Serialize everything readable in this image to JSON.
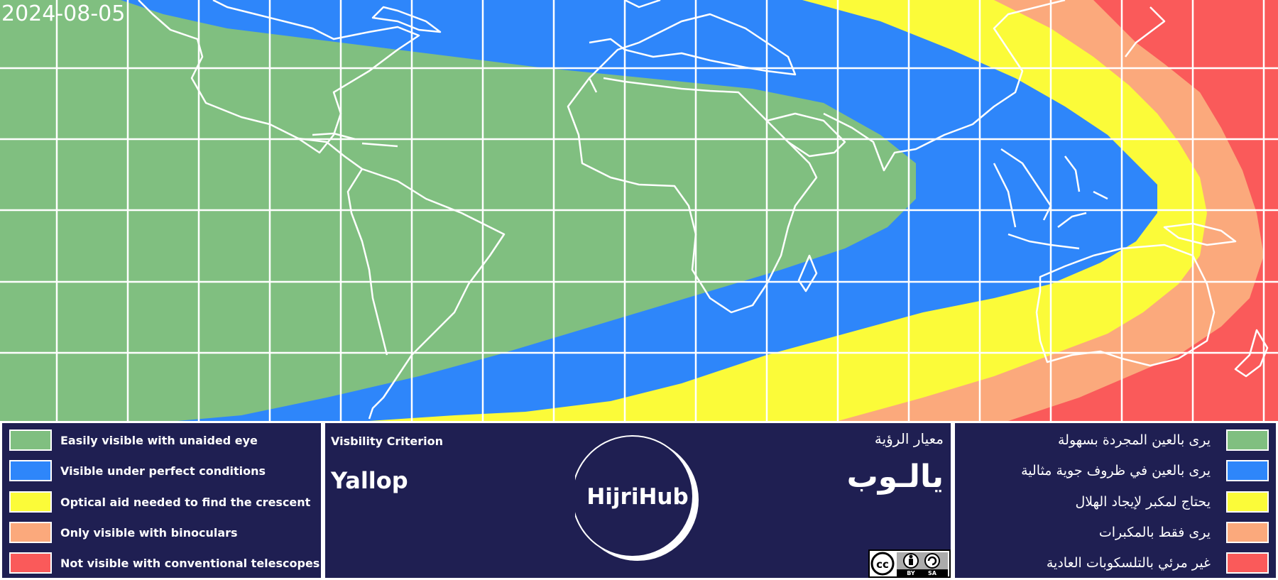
{
  "map": {
    "date": "2024-08-05",
    "colors": {
      "easily": "#80bf80",
      "perfect": "#2e86fa",
      "optical": "#fbfb39",
      "binoculars": "#fba97c",
      "not_visible": "#fa5a5a",
      "background": "#1f1f52",
      "lines": "#ffffff"
    }
  },
  "legend_en": [
    {
      "label": "Easily visible with unaided eye",
      "color": "#80bf80"
    },
    {
      "label": "Visible under perfect conditions",
      "color": "#2e86fa"
    },
    {
      "label": "Optical aid needed to find the crescent",
      "color": "#fbfb39"
    },
    {
      "label": "Only visible with binoculars",
      "color": "#fba97c"
    },
    {
      "label": "Not visible with conventional telescopes",
      "color": "#fa5a5a"
    }
  ],
  "criterion": {
    "label": "Visbility Criterion",
    "method": "Yallop",
    "label_ar": "معيار الرؤية",
    "method_ar": "يالـوب"
  },
  "logo": {
    "text": "HijriHub"
  },
  "license": {
    "icon": "cc-by-sa-icon",
    "by": "BY",
    "sa": "SA"
  },
  "legend_ar": [
    {
      "label": "يرى بالعين المجردة بسهولة",
      "color": "#80bf80"
    },
    {
      "label": "يرى بالعين في ظروف جوية مثالية",
      "color": "#2e86fa"
    },
    {
      "label": "يحتاج لمكبر لإيجاد الهلال",
      "color": "#fbfb39"
    },
    {
      "label": "يرى فقط بالمكبرات",
      "color": "#fba97c"
    },
    {
      "label": "غير مرئي بالتلسكوبات العادية",
      "color": "#fa5a5a"
    }
  ]
}
